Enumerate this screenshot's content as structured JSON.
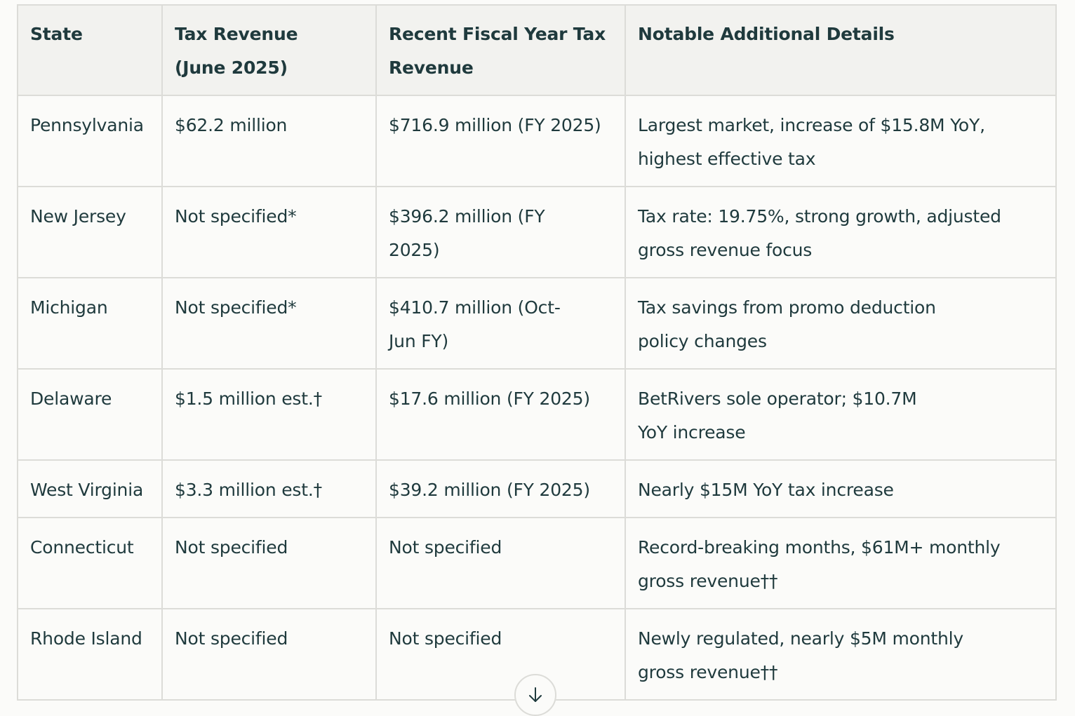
{
  "table": {
    "headers": [
      "State",
      "Tax Revenue (June 2025)",
      "Recent Fiscal Year Tax Revenue",
      "Notable Additional Details"
    ],
    "rows": [
      [
        "Pennsylvania",
        "$62.2 million",
        "$716.9 million (FY 2025)",
        "Largest market, increase of $15.8M YoY, highest effective tax"
      ],
      [
        "New Jersey",
        "Not specified*",
        "$396.2 million (FY 2025)",
        "Tax rate: 19.75%, strong growth, adjusted gross revenue focus"
      ],
      [
        "Michigan",
        "Not specified*",
        "$410.7 million (Oct-Jun FY)",
        "Tax savings from promo deduction policy changes"
      ],
      [
        "Delaware",
        "$1.5 million est.†",
        "$17.6 million (FY 2025)",
        "BetRivers sole operator; $10.7M YoY increase"
      ],
      [
        "West Virginia",
        "$3.3 million est.†",
        "$39.2 million (FY 2025)",
        "Nearly $15M YoY tax increase"
      ],
      [
        "Connecticut",
        "Not specified",
        "Not specified",
        "Record-breaking months, $61M+ monthly gross revenue††"
      ],
      [
        "Rhode Island",
        "Not specified",
        "Not specified",
        "Newly regulated, nearly $5M monthly gross revenue††"
      ]
    ]
  },
  "scroll_button": {
    "icon": "arrow-down-icon"
  }
}
